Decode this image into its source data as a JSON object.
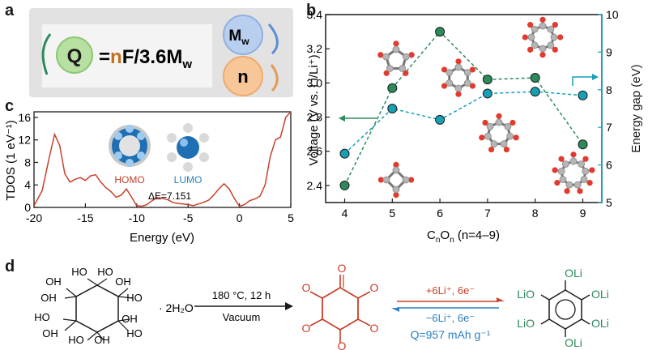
{
  "panels": {
    "a": "a",
    "b": "b",
    "c": "c",
    "d": "d"
  },
  "panel_a": {
    "q": "Q",
    "equation_prefix": "=",
    "equation_n": "n",
    "equation_mid": "F/3.6M",
    "equation_sub": "w",
    "mw_main": "M",
    "mw_sub": "w",
    "n": "n",
    "colors": {
      "q_circle": "#b7e0a2",
      "mw_circle": "#b9cff0",
      "n_circle": "#f7c79a",
      "box": "#dcdcdc"
    }
  },
  "chart_data": [
    {
      "panel": "b",
      "type": "line",
      "xlabel_main": "C",
      "xlabel_sub1": "n",
      "xlabel_mid": "O",
      "xlabel_sub2": "n",
      "xlabel_tail": " (n=4–9)",
      "ylabel": "Voltage (V vs. Li/Li⁺)",
      "y2label": "Energy gap (eV)",
      "x_ticks": [
        "4",
        "5",
        "6",
        "7",
        "8",
        "9"
      ],
      "ylim": [
        2.3,
        3.4
      ],
      "y_ticks": [
        "2.4",
        "2.6",
        "2.8",
        "3.0",
        "3.2",
        "3.4"
      ],
      "y2lim": [
        5,
        10
      ],
      "y2_ticks": [
        "5",
        "6",
        "7",
        "8",
        "9",
        "10"
      ],
      "series": [
        {
          "axis": "left",
          "color": "#2d8a5c",
          "x": [
            4,
            5,
            6,
            7,
            8,
            9
          ],
          "values": [
            2.4,
            2.97,
            3.3,
            3.02,
            3.03,
            2.64
          ]
        },
        {
          "axis": "right",
          "color": "#17a0b3",
          "x": [
            4,
            5,
            6,
            7,
            8,
            9
          ],
          "values": [
            6.3,
            7.5,
            7.2,
            7.9,
            7.95,
            7.85
          ]
        }
      ],
      "grid": false
    },
    {
      "panel": "c",
      "type": "line",
      "xlabel": "Energy (eV)",
      "ylabel": "TDOS (1 eV⁻¹)",
      "xlim": [
        -20,
        5
      ],
      "ylim": [
        0,
        17
      ],
      "x_ticks": [
        "-20",
        "-15",
        "-10",
        "-5",
        "0",
        "5"
      ],
      "y_ticks": [
        "0",
        "4",
        "8",
        "12",
        "16"
      ],
      "annotations": {
        "homo": "HOMO",
        "lumo": "LUMO",
        "gap": "ΔE=7.151"
      },
      "series": [
        {
          "color": "#c8402a",
          "x": [
            -20,
            -19.2,
            -18.5,
            -18,
            -17.5,
            -17,
            -16.5,
            -16,
            -15.5,
            -15,
            -14.5,
            -14,
            -13.5,
            -13,
            -12.5,
            -12,
            -11.5,
            -11,
            -10.5,
            -10,
            -9.5,
            -9,
            -8.5,
            -8,
            -7.5,
            -7,
            -6.5,
            -6,
            -5.5,
            -5,
            -4.5,
            -4,
            -3.5,
            -3,
            -2.5,
            -2,
            -1.5,
            -1,
            -0.5,
            0,
            0.5,
            1,
            1.5,
            2,
            2.5,
            3,
            3.5,
            4,
            4.5,
            5
          ],
          "values": [
            0.3,
            3,
            9,
            13,
            11,
            6,
            4.5,
            5,
            5.3,
            4.8,
            5.6,
            5.8,
            4.5,
            3.5,
            2.8,
            1.8,
            2.2,
            3.3,
            1.8,
            0.3,
            0.2,
            0.5,
            1.2,
            1.8,
            1.6,
            1.4,
            0.9,
            0.7,
            0.6,
            0.5,
            0.3,
            0.6,
            0.9,
            1.3,
            2.2,
            3.3,
            4.2,
            3.3,
            1.6,
            0.2,
            0.5,
            1.2,
            1.5,
            2,
            4,
            9,
            12,
            12.5,
            16,
            17
          ]
        }
      ]
    }
  ],
  "panel_d": {
    "reactant_groups": [
      "HO",
      "HO",
      "OH",
      "HO",
      "OH",
      "HO",
      "OH",
      "HO",
      "OH",
      "HO",
      "OH",
      "OH"
    ],
    "hydrate": "· 2H₂O",
    "condition_top": "180 °C, 12 h",
    "condition_bottom": "Vacuum",
    "forward": "+6Li⁺, 6e⁻",
    "reverse": "−6Li⁺, 6e⁻",
    "capacity": "Q=957 mAh g⁻¹",
    "oxygen": "O",
    "product_groups": [
      "OLi",
      "LiO",
      "OLi",
      "LiO",
      "OLi",
      "OLi"
    ],
    "colors": {
      "red": "#c8402a",
      "green": "#2d8a5c",
      "blue": "#2a7fc0"
    }
  }
}
